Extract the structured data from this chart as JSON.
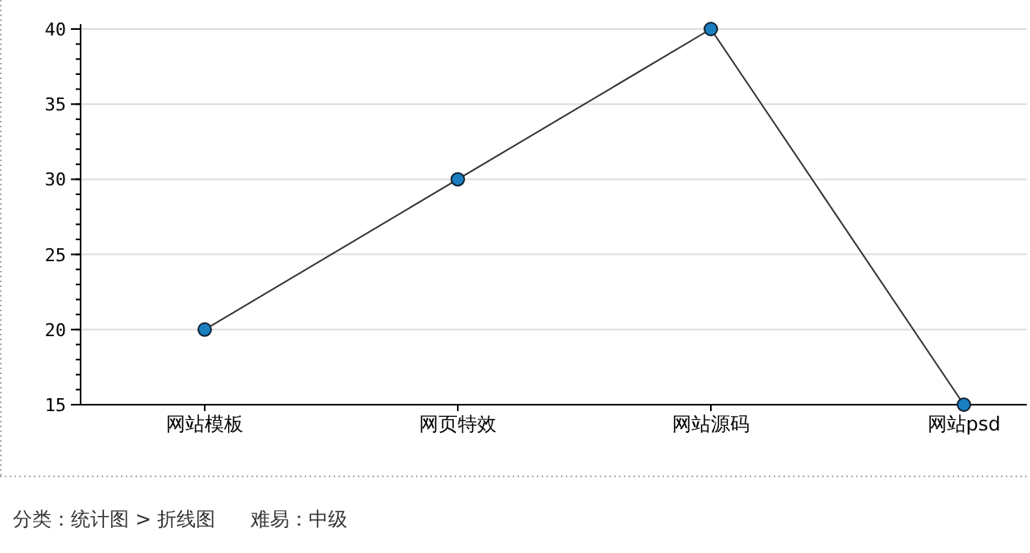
{
  "chart_data": {
    "type": "line",
    "categories": [
      "网站模板",
      "网页特效",
      "网站源码",
      "网站psd"
    ],
    "series": [
      {
        "color": "#1a7fc1",
        "values": [
          20,
          30,
          40,
          15
        ]
      }
    ],
    "ylim": [
      15,
      40
    ],
    "yticks": [
      15,
      20,
      25,
      30,
      35,
      40
    ],
    "grid": "y",
    "marker": "circle",
    "line_style": "solid",
    "annotations": [
      "分类：统计图 > 折线图",
      "难易：中级"
    ]
  }
}
